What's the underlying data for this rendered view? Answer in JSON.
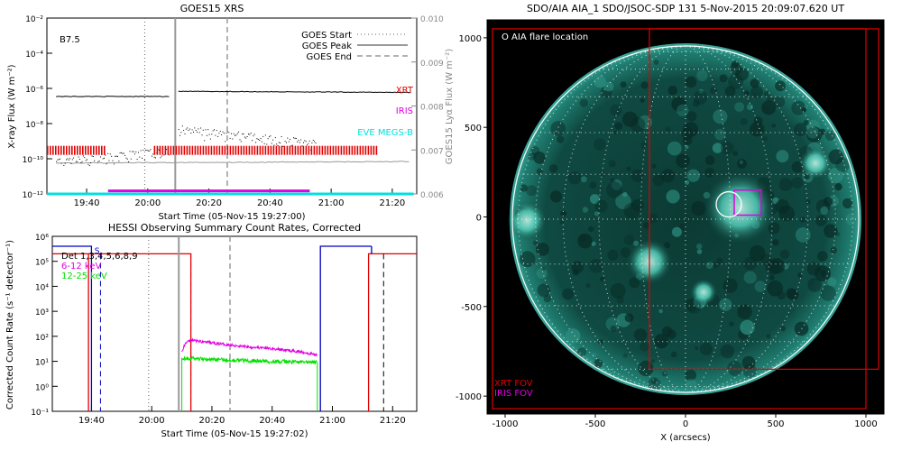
{
  "chart_data": [
    {
      "type": "line",
      "title": "GOES15 XRS",
      "ylabel": "X-ray Flux (W m⁻²)",
      "y2label": "GOES15 Lyα Flux (W m⁻²)",
      "xlabel": "Start Time (05-Nov-15 19:27:00)",
      "flare_class": "B7.5",
      "x_ticks": [
        "19:40",
        "20:00",
        "20:20",
        "20:40",
        "21:00",
        "21:20"
      ],
      "y_ticks": [
        "10⁻²",
        "10⁻⁴",
        "10⁻⁶",
        "10⁻⁸",
        "10⁻¹⁰",
        "10⁻¹²"
      ],
      "y2_ticks": [
        "0.010",
        "0.009",
        "0.008",
        "0.007",
        "0.006"
      ],
      "ylim": [
        1e-12,
        0.01
      ],
      "y2lim": [
        0.006,
        0.01
      ],
      "legend": [
        "GOES Start",
        "GOES Peak",
        "GOES End"
      ],
      "instrument_labels": [
        {
          "name": "XRT",
          "color": "#e00000"
        },
        {
          "name": "IRIS",
          "color": "#e000e0"
        },
        {
          "name": "EVE MEGS-B",
          "color": "#00e0e0"
        }
      ],
      "markers": {
        "start": "19:59",
        "peak": "20:09",
        "end": "20:26"
      },
      "series": [
        {
          "name": "XRT",
          "x": [
            "19:27",
            "19:46"
          ],
          "y": [
            3e-10,
            3e-10
          ]
        },
        {
          "name": "XRT",
          "x": [
            "20:02",
            "21:15"
          ],
          "y": [
            3e-10,
            3e-10
          ]
        },
        {
          "name": "IRIS",
          "x": [
            "19:47",
            "20:53"
          ],
          "y": [
            1.5e-12,
            1.5e-12
          ]
        },
        {
          "name": "EVE MEGS-B",
          "x": [
            "19:27",
            "21:27"
          ],
          "y": [
            1e-12,
            1e-12
          ]
        }
      ]
    },
    {
      "type": "line",
      "title": "HESSI Observing Summary Count Rates, Corrected",
      "ylabel": "Corrected Count Rate (s⁻¹ detector⁻¹)",
      "xlabel": "Start Time (05-Nov-15 19:27:02)",
      "x_ticks": [
        "19:40",
        "20:00",
        "20:20",
        "20:40",
        "21:00",
        "21:20"
      ],
      "y_ticks": [
        "10⁶",
        "10⁵",
        "10⁴",
        "10³",
        "10²",
        "10¹",
        "10⁰",
        "10⁻¹"
      ],
      "ylim": [
        0.1,
        1000000.0
      ],
      "s_marker": "S",
      "series": [
        {
          "name": "Det 1,3,4,5,6,8,9",
          "color": "#000000"
        },
        {
          "name": "6-12 keV",
          "color": "#e000e0",
          "x": [
            "20:10",
            "20:11",
            "20:13",
            "20:20",
            "20:30",
            "20:40",
            "20:50",
            "20:55"
          ],
          "y": [
            22,
            50,
            70,
            55,
            40,
            32,
            24,
            18
          ]
        },
        {
          "name": "12-25 keV",
          "color": "#00e000",
          "x": [
            "20:10",
            "20:20",
            "20:30",
            "20:40",
            "20:55"
          ],
          "y": [
            14,
            12,
            11,
            10,
            9
          ]
        }
      ]
    },
    {
      "type": "scatter",
      "title": "SDO/AIA AIA_1 SDO/JSOC-SDP 131  5-Nov-2015 20:09:07.620 UT",
      "xlabel": "X (arcsecs)",
      "x_ticks": [
        "-1000",
        "-500",
        "0",
        "500",
        "1000"
      ],
      "y_ticks": [
        "1000",
        "500",
        "0",
        "-500",
        "-1000"
      ],
      "xlim": [
        -1100,
        1100
      ],
      "ylim": [
        -1100,
        1100
      ],
      "legend_flare": "O AIA flare location",
      "fov_labels": [
        {
          "name": "XRT FOV",
          "color": "#e00000"
        },
        {
          "name": "IRIS FOV",
          "color": "#e000e0"
        }
      ],
      "flare_location": [
        300,
        50
      ]
    }
  ]
}
